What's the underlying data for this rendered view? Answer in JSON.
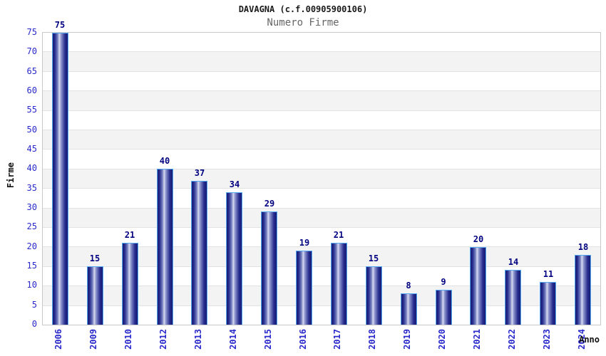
{
  "header": {
    "title": "DAVAGNA (c.f.00905900106)",
    "subtitle": "Numero Firme"
  },
  "chart_data": {
    "type": "bar",
    "title": "DAVAGNA (c.f.00905900106)",
    "subtitle": "Numero Firme",
    "categories": [
      "2006",
      "2009",
      "2010",
      "2012",
      "2013",
      "2014",
      "2015",
      "2016",
      "2017",
      "2018",
      "2019",
      "2020",
      "2021",
      "2022",
      "2023",
      "2024"
    ],
    "values": [
      75,
      15,
      21,
      40,
      37,
      34,
      29,
      19,
      21,
      15,
      8,
      9,
      20,
      14,
      11,
      18
    ],
    "xlabel": "Anno",
    "ylabel": "Firme",
    "ylim": [
      0,
      75
    ],
    "ytick_step": 5,
    "grid": "horizontal-bands-alternating",
    "legend": "none",
    "colors": {
      "bar_dark": "#161b72",
      "bar_highlight": "#d7daf0",
      "bar_border": "#55a8f2",
      "tick_label": "#2929cc",
      "value_label": "#000080",
      "title": "#1a1a1a",
      "subtitle": "#666666",
      "band_alt": "#f3f3f3",
      "grid_line": "#e2e2e2",
      "plot_border": "#c9c9c9",
      "background": "#ffffff"
    }
  }
}
